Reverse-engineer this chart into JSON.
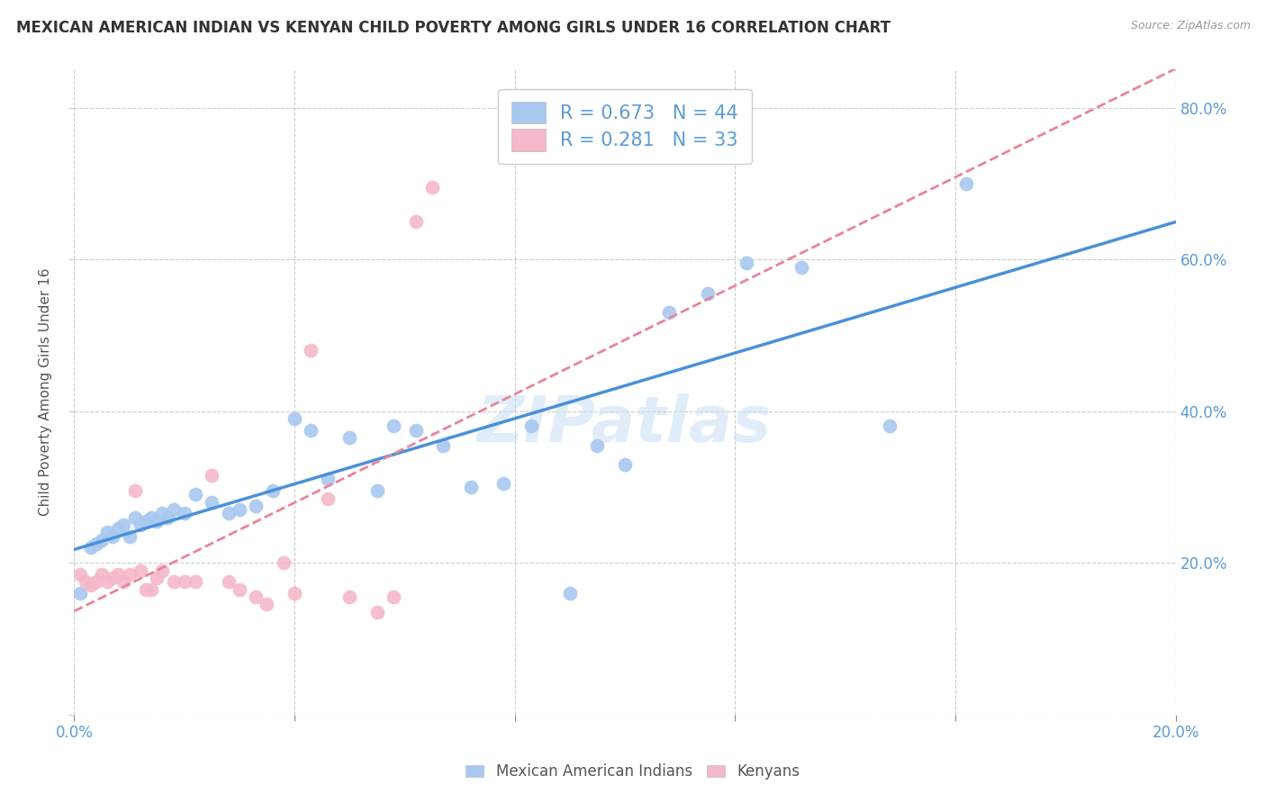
{
  "title": "MEXICAN AMERICAN INDIAN VS KENYAN CHILD POVERTY AMONG GIRLS UNDER 16 CORRELATION CHART",
  "source": "Source: ZipAtlas.com",
  "ylabel": "Child Poverty Among Girls Under 16",
  "xlim": [
    0.0,
    0.2
  ],
  "ylim": [
    0.0,
    0.85
  ],
  "legend_r1": "R = 0.673",
  "legend_n1": "N = 44",
  "legend_r2": "R = 0.281",
  "legend_n2": "N = 33",
  "blue_color": "#A8C8F0",
  "pink_color": "#F5B8C8",
  "blue_line_color": "#4A90D9",
  "pink_line_color": "#E8849A",
  "axis_color": "#5B9BD5",
  "watermark": "ZIPatlas",
  "blue_scatter_x": [
    0.001,
    0.003,
    0.004,
    0.005,
    0.006,
    0.007,
    0.008,
    0.009,
    0.01,
    0.011,
    0.012,
    0.013,
    0.014,
    0.015,
    0.016,
    0.017,
    0.018,
    0.02,
    0.022,
    0.025,
    0.028,
    0.03,
    0.033,
    0.036,
    0.04,
    0.043,
    0.046,
    0.05,
    0.055,
    0.058,
    0.062,
    0.067,
    0.072,
    0.078,
    0.083,
    0.09,
    0.095,
    0.1,
    0.108,
    0.115,
    0.122,
    0.132,
    0.148,
    0.162
  ],
  "blue_scatter_y": [
    0.16,
    0.22,
    0.225,
    0.23,
    0.24,
    0.235,
    0.245,
    0.25,
    0.235,
    0.26,
    0.25,
    0.255,
    0.26,
    0.255,
    0.265,
    0.26,
    0.27,
    0.265,
    0.29,
    0.28,
    0.265,
    0.27,
    0.275,
    0.295,
    0.39,
    0.375,
    0.31,
    0.365,
    0.295,
    0.38,
    0.375,
    0.355,
    0.3,
    0.305,
    0.38,
    0.16,
    0.355,
    0.33,
    0.53,
    0.555,
    0.595,
    0.59,
    0.38,
    0.7
  ],
  "pink_scatter_x": [
    0.001,
    0.002,
    0.003,
    0.004,
    0.005,
    0.006,
    0.007,
    0.008,
    0.009,
    0.01,
    0.011,
    0.012,
    0.013,
    0.014,
    0.015,
    0.016,
    0.018,
    0.02,
    0.022,
    0.025,
    0.028,
    0.03,
    0.033,
    0.035,
    0.038,
    0.04,
    0.043,
    0.046,
    0.05,
    0.055,
    0.058,
    0.062,
    0.065
  ],
  "pink_scatter_y": [
    0.185,
    0.175,
    0.17,
    0.175,
    0.185,
    0.175,
    0.18,
    0.185,
    0.175,
    0.185,
    0.295,
    0.19,
    0.165,
    0.165,
    0.18,
    0.19,
    0.175,
    0.175,
    0.175,
    0.315,
    0.175,
    0.165,
    0.155,
    0.145,
    0.2,
    0.16,
    0.48,
    0.285,
    0.155,
    0.135,
    0.155,
    0.65,
    0.695
  ]
}
